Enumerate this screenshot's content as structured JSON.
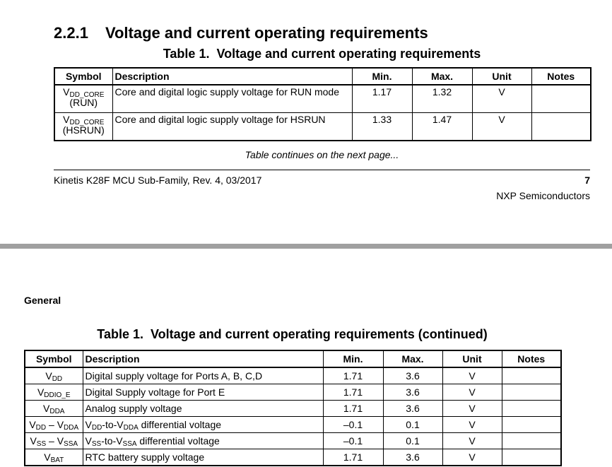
{
  "page1": {
    "section_number": "2.2.1",
    "section_title": "Voltage and current operating requirements",
    "table": {
      "caption_label": "Table 1.",
      "caption": "Voltage and current operating requirements",
      "columns": [
        "Symbol",
        "Description",
        "Min.",
        "Max.",
        "Unit",
        "Notes"
      ],
      "rows": [
        [
          [
            {
              "text": "V"
            },
            {
              "sub": "DD_CORE"
            },
            {
              "line": "(RUN)"
            }
          ],
          [
            {
              "text": "Core and digital logic supply voltage for RUN mode"
            }
          ],
          [
            {
              "text": "1.17"
            }
          ],
          [
            {
              "text": "1.32"
            }
          ],
          [
            {
              "text": "V"
            }
          ],
          null
        ],
        [
          [
            {
              "text": "V"
            },
            {
              "sub": "DD_CORE"
            },
            {
              "line": "(HSRUN)"
            }
          ],
          [
            {
              "text": "Core and digital logic supply voltage for HSRUN"
            }
          ],
          [
            {
              "text": "1.33"
            }
          ],
          [
            {
              "text": "1.47"
            }
          ],
          [
            {
              "text": "V"
            }
          ],
          null
        ]
      ],
      "continued_note": "Table continues on the next page..."
    },
    "footer": {
      "left": "Kinetis K28F MCU Sub-Family, Rev. 4, 03/2017",
      "page": "7",
      "company": "NXP Semiconductors"
    }
  },
  "page2": {
    "header": "General",
    "table": {
      "caption_label": "Table 1.",
      "caption": "Voltage and current operating requirements (continued)",
      "columns": [
        "Symbol",
        "Description",
        "Min.",
        "Max.",
        "Unit",
        "Notes"
      ],
      "rows": [
        [
          [
            {
              "text": "V"
            },
            {
              "sub": "DD"
            }
          ],
          [
            {
              "text": "Digital supply voltage for Ports A, B, C,D"
            }
          ],
          [
            {
              "text": "1.71"
            }
          ],
          [
            {
              "text": "3.6"
            }
          ],
          [
            {
              "text": "V"
            }
          ],
          null
        ],
        [
          [
            {
              "text": "V"
            },
            {
              "sub": "DDIO_E"
            }
          ],
          [
            {
              "text": "Digital Supply voltage for Port E"
            }
          ],
          [
            {
              "text": "1.71"
            }
          ],
          [
            {
              "text": "3.6"
            }
          ],
          [
            {
              "text": "V"
            }
          ],
          null
        ],
        [
          [
            {
              "text": "V"
            },
            {
              "sub": "DDA"
            }
          ],
          [
            {
              "text": "Analog supply voltage"
            }
          ],
          [
            {
              "text": "1.71"
            }
          ],
          [
            {
              "text": "3.6"
            }
          ],
          [
            {
              "text": "V"
            }
          ],
          null
        ],
        [
          [
            {
              "text": "V"
            },
            {
              "sub": "DD"
            },
            {
              "text": " – V"
            },
            {
              "sub": "DDA"
            }
          ],
          [
            {
              "text": "V"
            },
            {
              "sub": "DD"
            },
            {
              "text": "-to-V"
            },
            {
              "sub": "DDA"
            },
            {
              "text": " differential voltage"
            }
          ],
          [
            {
              "text": "–0.1"
            }
          ],
          [
            {
              "text": "0.1"
            }
          ],
          [
            {
              "text": "V"
            }
          ],
          null
        ],
        [
          [
            {
              "text": "V"
            },
            {
              "sub": "SS"
            },
            {
              "text": " – V"
            },
            {
              "sub": "SSA"
            }
          ],
          [
            {
              "text": "V"
            },
            {
              "sub": "SS"
            },
            {
              "text": "-to-V"
            },
            {
              "sub": "SSA"
            },
            {
              "text": " differential voltage"
            }
          ],
          [
            {
              "text": "–0.1"
            }
          ],
          [
            {
              "text": "0.1"
            }
          ],
          [
            {
              "text": "V"
            }
          ],
          null
        ],
        [
          [
            {
              "text": "V"
            },
            {
              "sub": "BAT"
            }
          ],
          [
            {
              "text": "RTC battery supply voltage"
            }
          ],
          [
            {
              "text": "1.71"
            }
          ],
          [
            {
              "text": "3.6"
            }
          ],
          [
            {
              "text": "V"
            }
          ],
          null
        ]
      ]
    }
  }
}
